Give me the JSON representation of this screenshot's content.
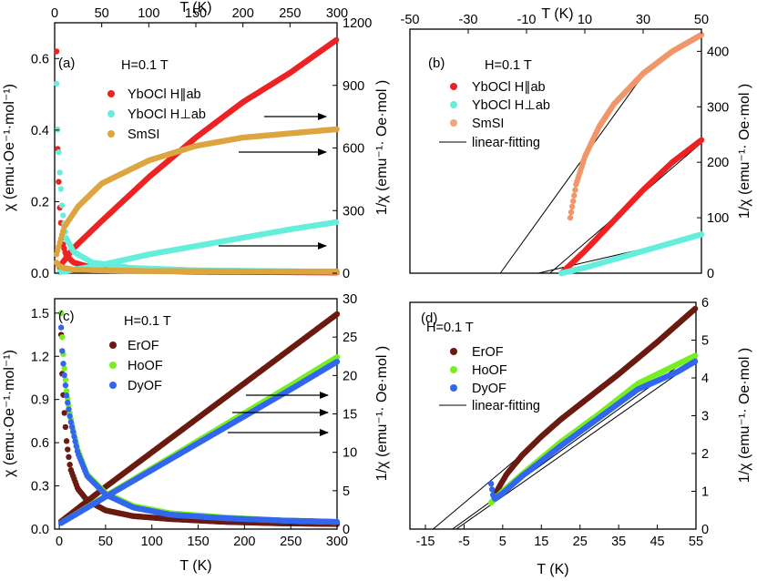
{
  "chart_data": [
    {
      "type": "scatter",
      "panel_label": "(a)",
      "field_label": "H=0.1 T",
      "xlabel": "T (K)",
      "xlim": [
        0,
        300
      ],
      "x_ticks": [
        "0",
        "50",
        "100",
        "150",
        "200",
        "250",
        "300"
      ],
      "ylabel_left": "χ (emu·Oe⁻¹·mol⁻¹)",
      "ylim_left": [
        0,
        0.7
      ],
      "y_ticks_left": [
        "0.0",
        "0.2",
        "0.4",
        "0.6"
      ],
      "ylabel_right": "1/χ (emu⁻¹· Oe·mol )",
      "ylim_right": [
        0,
        1200
      ],
      "y_ticks_right": [
        "0",
        "300",
        "600",
        "900",
        "1200"
      ],
      "series": [
        {
          "name": "YbOCl H∥ab",
          "color": "#ee2222",
          "axis": "both",
          "chi": {
            "x": [
              2,
              3,
              5,
              8,
              12,
              20,
              40,
              80,
              150,
              300
            ],
            "y": [
              0.62,
              0.36,
              0.2,
              0.09,
              0.05,
              0.03,
              0.015,
              0.008,
              0.004,
              0.002
            ]
          },
          "inv": {
            "x": [
              5,
              20,
              50,
              100,
              150,
              200,
              250,
              300
            ],
            "y": [
              30,
              120,
              250,
              460,
              650,
              820,
              960,
              1120
            ]
          }
        },
        {
          "name": "YbOCl H⊥ab",
          "color": "#66eedd",
          "axis": "both",
          "chi": {
            "x": [
              2,
              3,
              5,
              8,
              12,
              20,
              40,
              80,
              150,
              300
            ],
            "y": [
              0.53,
              0.41,
              0.3,
              0.18,
              0.1,
              0.06,
              0.03,
              0.015,
              0.008,
              0.004
            ]
          },
          "inv": {
            "x": [
              5,
              50,
              100,
              150,
              200,
              250,
              300
            ],
            "y": [
              5,
              40,
              90,
              130,
              170,
              210,
              245
            ]
          }
        },
        {
          "name": "SmSI",
          "color": "#dda540",
          "axis": "both",
          "chi": {
            "x": [
              2,
              5,
              10,
              20,
              50,
              100,
              200,
              300
            ],
            "y": [
              0.03,
              0.02,
              0.015,
              0.01,
              0.008,
              0.006,
              0.005,
              0.005
            ]
          },
          "inv": {
            "x": [
              2,
              10,
              25,
              50,
              100,
              150,
              200,
              250,
              300
            ],
            "y": [
              90,
              220,
              320,
              430,
              540,
              610,
              650,
              670,
              690
            ]
          }
        }
      ],
      "arrows": [
        "YbOCl H∥ab → right axis",
        "SmSI → right axis",
        "YbOCl H⊥ab → right axis"
      ]
    },
    {
      "type": "scatter",
      "panel_label": "(b)",
      "field_label": "H=0.1 T",
      "xlabel": "T (K)",
      "xlim": [
        -50,
        50
      ],
      "x_ticks": [
        "-50",
        "-30",
        "-10",
        "10",
        "30",
        "50"
      ],
      "ylabel_right": "1/χ (emu⁻¹· Oe·mol )",
      "ylim_right": [
        0,
        440
      ],
      "y_ticks_right": [
        "0",
        "100",
        "200",
        "300",
        "400"
      ],
      "series": [
        {
          "name": "YbOCl H∥ab",
          "color": "#ee2222",
          "x": [
            2,
            10,
            20,
            30,
            40,
            50
          ],
          "y": [
            0,
            40,
            95,
            150,
            200,
            240
          ]
        },
        {
          "name": "YbOCl H⊥ab",
          "color": "#66eedd",
          "x": [
            2,
            10,
            20,
            30,
            40,
            50
          ],
          "y": [
            0,
            10,
            25,
            40,
            55,
            70
          ]
        },
        {
          "name": "SmSI",
          "color": "#f0966a",
          "x": [
            5,
            7,
            10,
            15,
            20,
            30,
            40,
            50
          ],
          "y": [
            100,
            160,
            210,
            265,
            305,
            360,
            400,
            430
          ]
        },
        {
          "name": "linear-fitting",
          "color": "#000000",
          "line": true
        }
      ],
      "fits": [
        {
          "x": [
            -19,
            29
          ],
          "y": [
            0,
            350
          ]
        },
        {
          "x": [
            -2,
            50
          ],
          "y": [
            0,
            235
          ]
        },
        {
          "x": [
            -6,
            50
          ],
          "y": [
            0,
            68
          ]
        }
      ]
    },
    {
      "type": "scatter",
      "panel_label": "(c)",
      "field_label": "H=0.1 T",
      "xlabel": "T (K)",
      "xlim": [
        -5,
        300
      ],
      "x_ticks": [
        "0",
        "50",
        "100",
        "150",
        "200",
        "250",
        "300"
      ],
      "ylabel_left": "χ (emu·Oe⁻¹·mol⁻¹)",
      "ylim_left": [
        0,
        1.6
      ],
      "y_ticks_left": [
        "0.0",
        "0.3",
        "0.6",
        "0.9",
        "1.2",
        "1.5"
      ],
      "ylabel_right": "1/χ (emu⁻¹· Oe·mol )",
      "ylim_right": [
        0,
        30
      ],
      "y_ticks_right": [
        "0",
        "5",
        "10",
        "15",
        "20",
        "25",
        "30"
      ],
      "series": [
        {
          "name": "ErOF",
          "color": "#6b1a10",
          "axis": "both",
          "chi": {
            "x": [
              2,
              3,
              5,
              8,
              12,
              20,
              30,
              50,
              80,
              120,
              180,
              240,
              300
            ],
            "y": [
              1.35,
              1.1,
              0.85,
              0.6,
              0.42,
              0.28,
              0.2,
              0.13,
              0.09,
              0.07,
              0.05,
              0.04,
              0.035
            ]
          },
          "inv": {
            "x": [
              2,
              50,
              100,
              150,
              200,
              250,
              300
            ],
            "y": [
              1,
              5.5,
              10,
              14.5,
              19,
              23.5,
              28
            ]
          }
        },
        {
          "name": "HoOF",
          "color": "#77ee22",
          "axis": "both",
          "chi": {
            "x": [
              2,
              3,
              5,
              8,
              12,
              20,
              30,
              50,
              80,
              120,
              180,
              240,
              300
            ],
            "y": [
              1.5,
              1.35,
              1.15,
              0.95,
              0.78,
              0.55,
              0.38,
              0.25,
              0.16,
              0.11,
              0.08,
              0.06,
              0.05
            ]
          },
          "inv": {
            "x": [
              2,
              50,
              100,
              150,
              200,
              250,
              300
            ],
            "y": [
              0.8,
              4.3,
              7.9,
              11.5,
              15.1,
              18.7,
              22.4
            ]
          }
        },
        {
          "name": "DyOF",
          "color": "#3366ee",
          "axis": "both",
          "chi": {
            "x": [
              2,
              3,
              5,
              8,
              12,
              20,
              30,
              50,
              80,
              120,
              180,
              240,
              300
            ],
            "y": [
              1.4,
              1.25,
              1.1,
              0.92,
              0.76,
              0.53,
              0.37,
              0.24,
              0.15,
              0.1,
              0.075,
              0.06,
              0.05
            ]
          },
          "inv": {
            "x": [
              2,
              50,
              100,
              150,
              200,
              250,
              300
            ],
            "y": [
              0.8,
              4.2,
              7.7,
              11.2,
              14.7,
              18.2,
              21.8
            ]
          }
        }
      ],
      "arrows": [
        "ErOF → right axis",
        "HoOF → right axis",
        "DyOF → right axis"
      ]
    },
    {
      "type": "scatter",
      "panel_label": "(d)",
      "field_label": "H=0.1 T",
      "xlabel": "T (K)",
      "xlim": [
        -19,
        55
      ],
      "x_ticks": [
        "-15",
        "-5",
        "5",
        "15",
        "25",
        "35",
        "45",
        "55"
      ],
      "ylabel_right": "1/χ (emu⁻¹· Oe·mol )",
      "ylim_right": [
        0,
        6
      ],
      "y_ticks_right": [
        "0",
        "1",
        "2",
        "3",
        "4",
        "5",
        "6"
      ],
      "series": [
        {
          "name": "ErOF",
          "color": "#6b1a10",
          "x": [
            3,
            4,
            6,
            10,
            15,
            20,
            25,
            35,
            45,
            55
          ],
          "y": [
            0.9,
            1.1,
            1.45,
            1.95,
            2.45,
            2.9,
            3.3,
            4.1,
            4.95,
            5.85
          ]
        },
        {
          "name": "HoOF",
          "color": "#77ee22",
          "x": [
            2,
            5,
            10,
            20,
            30,
            40,
            50,
            55
          ],
          "y": [
            0.7,
            1.0,
            1.45,
            2.3,
            3.05,
            3.85,
            4.35,
            4.6
          ]
        },
        {
          "name": "DyOF",
          "color": "#3366ee",
          "x": [
            2,
            2.5,
            3,
            5,
            10,
            20,
            30,
            40,
            50,
            55
          ],
          "y": [
            1.2,
            0.9,
            0.8,
            0.95,
            1.4,
            2.2,
            2.95,
            3.7,
            4.15,
            4.45
          ]
        },
        {
          "name": "linear-fitting",
          "color": "#000000",
          "line": true
        }
      ],
      "fits": [
        {
          "x": [
            -13,
            55
          ],
          "y": [
            0,
            5.85
          ]
        },
        {
          "x": [
            -8,
            55
          ],
          "y": [
            0,
            4.65
          ]
        },
        {
          "x": [
            -7,
            55
          ],
          "y": [
            0,
            4.45
          ]
        }
      ]
    }
  ]
}
